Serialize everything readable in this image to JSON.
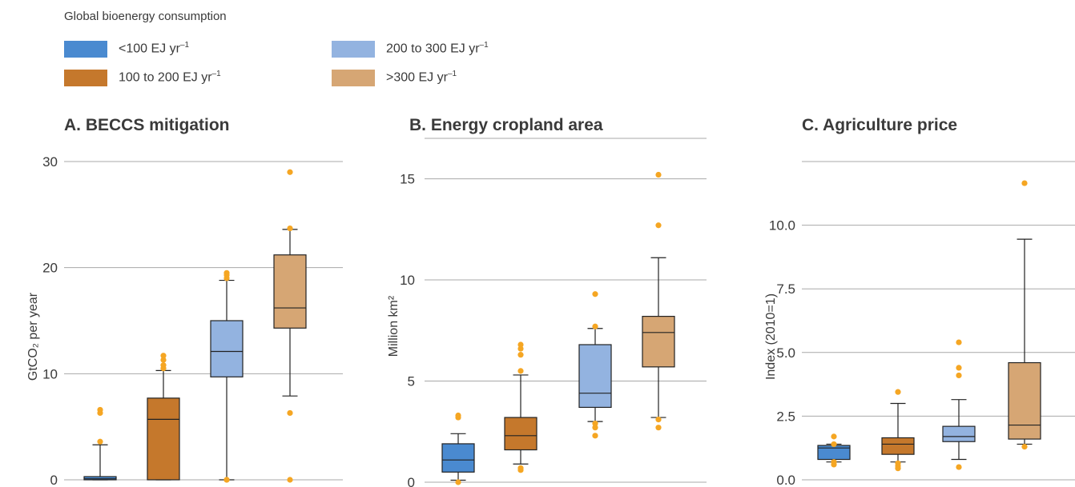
{
  "legend": {
    "title": "Global bioenergy consumption",
    "items": [
      {
        "label": "<100 EJ yr",
        "sup": "–1",
        "color": "#4a8ad0"
      },
      {
        "label": "100 to 200 EJ yr",
        "sup": "–1",
        "color": "#c5782c"
      },
      {
        "label": "200 to 300 EJ yr",
        "sup": "–1",
        "color": "#93b3e0"
      },
      {
        "label": ">300 EJ yr",
        "sup": "–1",
        "color": "#d6a674"
      }
    ]
  },
  "outlier_color": "#f5a623",
  "chart_data": [
    {
      "type": "box",
      "title": "A. BECCS mitigation",
      "ylabel": "GtCO₂ per year",
      "ylim": [
        0,
        30
      ],
      "yticks": [
        0,
        10,
        20,
        30
      ],
      "ytick_labels": [
        "0",
        "10",
        "20",
        "30"
      ],
      "series": [
        {
          "name": "<100 EJ yr–1",
          "whisker_low": 0,
          "q1": 0,
          "median": 0.1,
          "q3": 0.3,
          "whisker_high": 3.3,
          "outliers": [
            3.6,
            6.3,
            6.6
          ]
        },
        {
          "name": "100 to 200 EJ yr–1",
          "whisker_low": 0,
          "q1": 0,
          "median": 5.7,
          "q3": 7.7,
          "whisker_high": 10.3,
          "outliers": [
            10.5,
            10.8,
            11.3,
            11.7
          ]
        },
        {
          "name": "200 to 300 EJ yr–1",
          "whisker_low": 0,
          "q1": 9.7,
          "median": 12.1,
          "q3": 15.0,
          "whisker_high": 18.8,
          "outliers": [
            0,
            0,
            19.0,
            19.3,
            19.5
          ]
        },
        {
          "name": ">300 EJ yr–1",
          "whisker_low": 7.9,
          "q1": 14.3,
          "median": 16.2,
          "q3": 21.2,
          "whisker_high": 23.6,
          "outliers": [
            0,
            6.3,
            23.7,
            29.0
          ]
        }
      ]
    },
    {
      "type": "box",
      "title": "B. Energy cropland area",
      "ylabel": "Million km²",
      "ylim": [
        0,
        17
      ],
      "yticks": [
        0,
        5,
        10,
        15
      ],
      "ytick_labels": [
        "0",
        "5",
        "10",
        "15"
      ],
      "series": [
        {
          "name": "<100 EJ yr–1",
          "whisker_low": 0.1,
          "q1": 0.5,
          "median": 1.1,
          "q3": 1.9,
          "whisker_high": 2.4,
          "outliers": [
            0,
            3.2,
            3.3
          ]
        },
        {
          "name": "100 to 200 EJ yr–1",
          "whisker_low": 0.9,
          "q1": 1.6,
          "median": 2.3,
          "q3": 3.2,
          "whisker_high": 5.3,
          "outliers": [
            0.6,
            0.7,
            5.5,
            6.3,
            6.6,
            6.8
          ]
        },
        {
          "name": "200 to 300 EJ yr–1",
          "whisker_low": 3.0,
          "q1": 3.7,
          "median": 4.4,
          "q3": 6.8,
          "whisker_high": 7.6,
          "outliers": [
            2.3,
            2.7,
            2.9,
            7.7,
            9.3
          ]
        },
        {
          "name": ">300 EJ yr–1",
          "whisker_low": 3.2,
          "q1": 5.7,
          "median": 7.4,
          "q3": 8.2,
          "whisker_high": 11.1,
          "outliers": [
            2.7,
            3.1,
            12.7,
            15.2
          ]
        }
      ]
    },
    {
      "type": "box",
      "title": "C. Agriculture price",
      "ylabel": "Index (2010=1)",
      "ylim": [
        0,
        12.5
      ],
      "yticks": [
        0,
        2.5,
        5.0,
        7.5,
        10.0
      ],
      "ytick_labels": [
        "0.0",
        "2.5",
        "5.0",
        "7.5",
        "10.0"
      ],
      "series": [
        {
          "name": "<100 EJ yr–1",
          "whisker_low": 0.7,
          "q1": 0.8,
          "median": 1.25,
          "q3": 1.35,
          "whisker_high": 1.4,
          "outliers": [
            0.6,
            0.7,
            1.4,
            1.7
          ]
        },
        {
          "name": "100 to 200 EJ yr–1",
          "whisker_low": 0.7,
          "q1": 1.0,
          "median": 1.4,
          "q3": 1.65,
          "whisker_high": 3.0,
          "outliers": [
            0.45,
            0.55,
            0.65,
            3.45
          ]
        },
        {
          "name": "200 to 300 EJ yr–1",
          "whisker_low": 0.8,
          "q1": 1.5,
          "median": 1.7,
          "q3": 2.1,
          "whisker_high": 3.15,
          "outliers": [
            0.5,
            4.1,
            4.4,
            5.4
          ]
        },
        {
          "name": ">300 EJ yr–1",
          "whisker_low": 1.4,
          "q1": 1.6,
          "median": 2.15,
          "q3": 4.6,
          "whisker_high": 9.45,
          "outliers": [
            1.3,
            11.65
          ]
        }
      ]
    }
  ]
}
